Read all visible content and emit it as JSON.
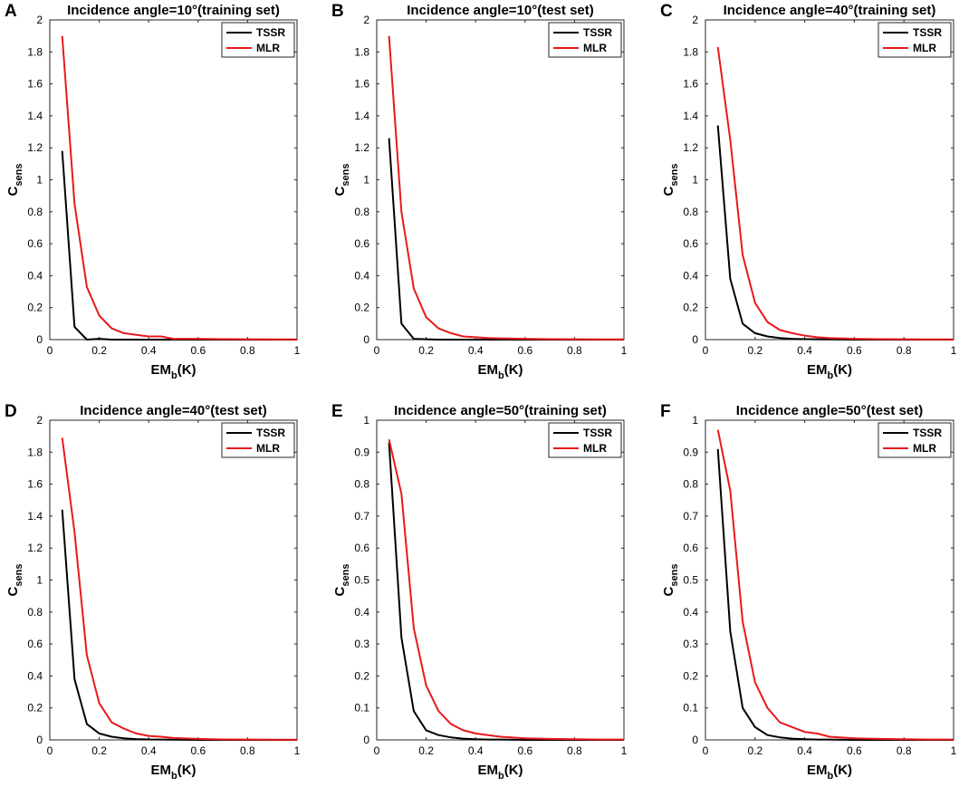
{
  "figure": {
    "xlabel_main": "EM",
    "xlabel_sub": "b",
    "xlabel_unit": "(K)",
    "ylabel_main": "C",
    "ylabel_sub": "sens"
  },
  "colors": {
    "TSSR": "#000000",
    "MLR": "#e8191b"
  },
  "chart_data": [
    {
      "panel": "A",
      "type": "line",
      "title": "Incidence angle=10°(training set)",
      "xlim": [
        0,
        1
      ],
      "ylim": [
        0,
        2
      ],
      "xticks": [
        "0",
        "0.2",
        "0.4",
        "0.6",
        "0.8",
        "1"
      ],
      "yticks": [
        "0",
        "0.2",
        "0.4",
        "0.6",
        "0.8",
        "1",
        "1.2",
        "1.4",
        "1.6",
        "1.8",
        "2"
      ],
      "x": [
        0.05,
        0.1,
        0.15,
        0.2,
        0.25,
        0.3,
        0.35,
        0.4,
        0.45,
        0.5,
        0.6,
        0.7,
        0.8,
        0.9,
        1.0
      ],
      "series": [
        {
          "name": "TSSR",
          "values": [
            1.18,
            0.08,
            0.0,
            0.005,
            0.0,
            0.0,
            0.0,
            0.0,
            0.0,
            0.0,
            0.0,
            0.0,
            0.0,
            0.0,
            0.0
          ]
        },
        {
          "name": "MLR",
          "values": [
            1.9,
            0.85,
            0.33,
            0.15,
            0.07,
            0.04,
            0.03,
            0.02,
            0.02,
            0.005,
            0.005,
            0.003,
            0.002,
            0.001,
            0.001
          ]
        }
      ]
    },
    {
      "panel": "B",
      "type": "line",
      "title": "Incidence angle=10°(test set)",
      "xlim": [
        0,
        1
      ],
      "ylim": [
        0,
        2
      ],
      "xticks": [
        "0",
        "0.2",
        "0.4",
        "0.6",
        "0.8",
        "1"
      ],
      "yticks": [
        "0",
        "0.2",
        "0.4",
        "0.6",
        "0.8",
        "1",
        "1.2",
        "1.4",
        "1.6",
        "1.8",
        "2"
      ],
      "x": [
        0.05,
        0.1,
        0.15,
        0.2,
        0.25,
        0.3,
        0.35,
        0.4,
        0.45,
        0.5,
        0.6,
        0.7,
        0.8,
        0.9,
        1.0
      ],
      "series": [
        {
          "name": "TSSR",
          "values": [
            1.26,
            0.1,
            0.005,
            0.002,
            0.0,
            0.0,
            0.0,
            0.0,
            0.0,
            0.0,
            0.0,
            0.0,
            0.0,
            0.0,
            0.0
          ]
        },
        {
          "name": "MLR",
          "values": [
            1.9,
            0.8,
            0.32,
            0.14,
            0.07,
            0.04,
            0.02,
            0.015,
            0.01,
            0.008,
            0.005,
            0.003,
            0.002,
            0.001,
            0.001
          ]
        }
      ]
    },
    {
      "panel": "C",
      "type": "line",
      "title": "Incidence angle=40°(training set)",
      "xlim": [
        0,
        1
      ],
      "ylim": [
        0,
        2
      ],
      "xticks": [
        "0",
        "0.2",
        "0.4",
        "0.6",
        "0.8",
        "1"
      ],
      "yticks": [
        "0",
        "0.2",
        "0.4",
        "0.6",
        "0.8",
        "1",
        "1.2",
        "1.4",
        "1.6",
        "1.8",
        "2"
      ],
      "x": [
        0.05,
        0.1,
        0.15,
        0.2,
        0.25,
        0.3,
        0.35,
        0.4,
        0.45,
        0.5,
        0.6,
        0.7,
        0.8,
        0.9,
        1.0
      ],
      "series": [
        {
          "name": "TSSR",
          "values": [
            1.34,
            0.38,
            0.1,
            0.04,
            0.02,
            0.01,
            0.005,
            0.003,
            0.002,
            0.001,
            0.0,
            0.0,
            0.0,
            0.0,
            0.0
          ]
        },
        {
          "name": "MLR",
          "values": [
            1.83,
            1.25,
            0.53,
            0.23,
            0.11,
            0.06,
            0.04,
            0.025,
            0.015,
            0.01,
            0.005,
            0.003,
            0.002,
            0.001,
            0.001
          ]
        }
      ]
    },
    {
      "panel": "D",
      "type": "line",
      "title": "Incidence angle=40°(test set)",
      "xlim": [
        0,
        1
      ],
      "ylim": [
        0,
        2
      ],
      "xticks": [
        "0",
        "0.2",
        "0.4",
        "0.6",
        "0.8",
        "1"
      ],
      "yticks": [
        "0",
        "0.2",
        "0.4",
        "0.6",
        "0.8",
        "1",
        "1.2",
        "1.4",
        "1.6",
        "1.8",
        "2"
      ],
      "x": [
        0.05,
        0.1,
        0.15,
        0.2,
        0.25,
        0.3,
        0.35,
        0.4,
        0.45,
        0.5,
        0.6,
        0.7,
        0.8,
        0.9,
        1.0
      ],
      "series": [
        {
          "name": "TSSR",
          "values": [
            1.44,
            0.38,
            0.1,
            0.04,
            0.02,
            0.01,
            0.005,
            0.003,
            0.002,
            0.001,
            0.0,
            0.0,
            0.0,
            0.0,
            0.0
          ]
        },
        {
          "name": "MLR",
          "values": [
            1.89,
            1.3,
            0.53,
            0.23,
            0.11,
            0.07,
            0.04,
            0.025,
            0.02,
            0.012,
            0.006,
            0.003,
            0.002,
            0.001,
            0.001
          ]
        }
      ]
    },
    {
      "panel": "E",
      "type": "line",
      "title": "Incidence angle=50°(training set)",
      "xlim": [
        0,
        1
      ],
      "ylim": [
        0,
        1
      ],
      "xticks": [
        "0",
        "0.2",
        "0.4",
        "0.6",
        "0.8",
        "1"
      ],
      "yticks": [
        "0",
        "0.1",
        "0.2",
        "0.3",
        "0.4",
        "0.5",
        "0.6",
        "0.7",
        "0.8",
        "0.9",
        "1"
      ],
      "x": [
        0.05,
        0.1,
        0.15,
        0.2,
        0.25,
        0.3,
        0.35,
        0.4,
        0.45,
        0.5,
        0.6,
        0.7,
        0.8,
        0.9,
        1.0
      ],
      "series": [
        {
          "name": "TSSR",
          "values": [
            0.93,
            0.32,
            0.09,
            0.03,
            0.015,
            0.008,
            0.004,
            0.002,
            0.001,
            0.001,
            0.0,
            0.0,
            0.0,
            0.0,
            0.0
          ]
        },
        {
          "name": "MLR",
          "values": [
            0.94,
            0.77,
            0.35,
            0.17,
            0.09,
            0.05,
            0.03,
            0.02,
            0.015,
            0.01,
            0.005,
            0.003,
            0.002,
            0.001,
            0.001
          ]
        }
      ]
    },
    {
      "panel": "F",
      "type": "line",
      "title": "Incidence angle=50°(test set)",
      "xlim": [
        0,
        1
      ],
      "ylim": [
        0,
        1
      ],
      "xticks": [
        "0",
        "0.2",
        "0.4",
        "0.6",
        "0.8",
        "1"
      ],
      "yticks": [
        "0",
        "0.1",
        "0.2",
        "0.3",
        "0.4",
        "0.5",
        "0.6",
        "0.7",
        "0.8",
        "0.9",
        "1"
      ],
      "x": [
        0.05,
        0.1,
        0.15,
        0.2,
        0.25,
        0.3,
        0.35,
        0.4,
        0.45,
        0.5,
        0.6,
        0.7,
        0.8,
        0.9,
        1.0
      ],
      "series": [
        {
          "name": "TSSR",
          "values": [
            0.91,
            0.34,
            0.1,
            0.04,
            0.015,
            0.008,
            0.004,
            0.002,
            0.001,
            0.001,
            0.0,
            0.0,
            0.0,
            0.0,
            0.0
          ]
        },
        {
          "name": "MLR",
          "values": [
            0.97,
            0.78,
            0.37,
            0.18,
            0.1,
            0.055,
            0.04,
            0.025,
            0.02,
            0.01,
            0.005,
            0.003,
            0.002,
            0.001,
            0.001
          ]
        }
      ]
    }
  ]
}
